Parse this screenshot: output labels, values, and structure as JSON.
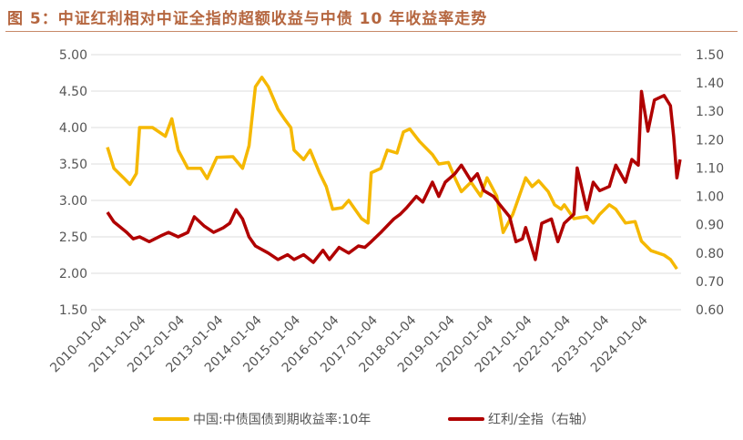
{
  "title": "图 5：中证红利相对中证全指的超额收益与中债 10 年收益率走势",
  "chart_data": {
    "type": "line",
    "title": "图 5：中证红利相对中证全指的超额收益与中债 10 年收益率走势",
    "xlabel": "",
    "ylabel": "",
    "x_ticks": [
      "2010-01-04",
      "2011-01-04",
      "2012-01-04",
      "2013-01-04",
      "2014-01-04",
      "2015-01-04",
      "2016-01-04",
      "2017-01-04",
      "2018-01-04",
      "2019-01-04",
      "2020-01-04",
      "2021-01-04",
      "2022-01-04",
      "2023-01-04",
      "2024-01-04"
    ],
    "y_left": {
      "ylim": [
        1.5,
        5.0
      ],
      "ticks": [
        "1.50",
        "2.00",
        "2.50",
        "3.00",
        "3.50",
        "4.00",
        "4.50",
        "5.00"
      ]
    },
    "y_right": {
      "ylim": [
        0.6,
        1.5
      ],
      "ticks": [
        "0.60",
        "0.70",
        "0.80",
        "0.90",
        "1.00",
        "1.10",
        "1.20",
        "1.30",
        "1.40",
        "1.50"
      ]
    },
    "grid": true,
    "legend_position": "bottom",
    "series": [
      {
        "name": "中国:中债国债到期收益率:10年",
        "axis": "left",
        "color": "#f5b800",
        "points": [
          [
            "2010-01",
            3.73
          ],
          [
            "2010-03",
            3.44
          ],
          [
            "2010-06",
            3.31
          ],
          [
            "2010-08",
            3.22
          ],
          [
            "2010-10",
            3.37
          ],
          [
            "2010-11",
            4.0
          ],
          [
            "2011-03",
            4.0
          ],
          [
            "2011-07",
            3.88
          ],
          [
            "2011-09",
            4.12
          ],
          [
            "2011-11",
            3.69
          ],
          [
            "2012-02",
            3.44
          ],
          [
            "2012-06",
            3.44
          ],
          [
            "2012-08",
            3.3
          ],
          [
            "2012-11",
            3.59
          ],
          [
            "2013-04",
            3.6
          ],
          [
            "2013-07",
            3.44
          ],
          [
            "2013-09",
            3.75
          ],
          [
            "2013-11",
            4.56
          ],
          [
            "2014-01",
            4.69
          ],
          [
            "2014-03",
            4.56
          ],
          [
            "2014-06",
            4.25
          ],
          [
            "2014-08",
            4.12
          ],
          [
            "2014-10",
            4.0
          ],
          [
            "2014-11",
            3.69
          ],
          [
            "2015-02",
            3.56
          ],
          [
            "2015-04",
            3.69
          ],
          [
            "2015-07",
            3.37
          ],
          [
            "2015-09",
            3.19
          ],
          [
            "2015-11",
            2.88
          ],
          [
            "2016-02",
            2.9
          ],
          [
            "2016-04",
            3.0
          ],
          [
            "2016-08",
            2.75
          ],
          [
            "2016-10",
            2.69
          ],
          [
            "2016-11",
            3.38
          ],
          [
            "2017-02",
            3.44
          ],
          [
            "2017-04",
            3.69
          ],
          [
            "2017-07",
            3.65
          ],
          [
            "2017-09",
            3.94
          ],
          [
            "2017-11",
            3.98
          ],
          [
            "2018-02",
            3.81
          ],
          [
            "2018-06",
            3.63
          ],
          [
            "2018-08",
            3.5
          ],
          [
            "2018-11",
            3.52
          ],
          [
            "2019-01",
            3.31
          ],
          [
            "2019-03",
            3.12
          ],
          [
            "2019-06",
            3.25
          ],
          [
            "2019-09",
            3.06
          ],
          [
            "2019-11",
            3.31
          ],
          [
            "2020-02",
            3.06
          ],
          [
            "2020-04",
            2.56
          ],
          [
            "2020-07",
            2.81
          ],
          [
            "2020-09",
            3.06
          ],
          [
            "2020-11",
            3.31
          ],
          [
            "2021-01",
            3.19
          ],
          [
            "2021-03",
            3.27
          ],
          [
            "2021-06",
            3.12
          ],
          [
            "2021-08",
            2.94
          ],
          [
            "2021-10",
            2.88
          ],
          [
            "2021-11",
            2.94
          ],
          [
            "2022-02",
            2.75
          ],
          [
            "2022-06",
            2.78
          ],
          [
            "2022-08",
            2.69
          ],
          [
            "2022-10",
            2.81
          ],
          [
            "2023-01",
            2.94
          ],
          [
            "2023-03",
            2.88
          ],
          [
            "2023-06",
            2.69
          ],
          [
            "2023-09",
            2.71
          ],
          [
            "2023-11",
            2.44
          ],
          [
            "2024-02",
            2.31
          ],
          [
            "2024-06",
            2.25
          ],
          [
            "2024-08",
            2.19
          ],
          [
            "2024-10",
            2.06
          ]
        ]
      },
      {
        "name": "红利/全指（右轴）",
        "axis": "right",
        "color": "#b00000",
        "points": [
          [
            "2010-01",
            0.944
          ],
          [
            "2010-03",
            0.91
          ],
          [
            "2010-07",
            0.873
          ],
          [
            "2010-09",
            0.85
          ],
          [
            "2010-11",
            0.857
          ],
          [
            "2011-02",
            0.84
          ],
          [
            "2011-06",
            0.863
          ],
          [
            "2011-08",
            0.873
          ],
          [
            "2011-11",
            0.857
          ],
          [
            "2012-02",
            0.873
          ],
          [
            "2012-04",
            0.928
          ],
          [
            "2012-07",
            0.896
          ],
          [
            "2012-10",
            0.873
          ],
          [
            "2013-01",
            0.889
          ],
          [
            "2013-03",
            0.905
          ],
          [
            "2013-05",
            0.953
          ],
          [
            "2013-07",
            0.92
          ],
          [
            "2013-09",
            0.857
          ],
          [
            "2013-11",
            0.825
          ],
          [
            "2014-03",
            0.8
          ],
          [
            "2014-06",
            0.777
          ],
          [
            "2014-09",
            0.794
          ],
          [
            "2014-11",
            0.777
          ],
          [
            "2015-02",
            0.794
          ],
          [
            "2015-05",
            0.767
          ],
          [
            "2015-08",
            0.81
          ],
          [
            "2015-10",
            0.777
          ],
          [
            "2016-01",
            0.82
          ],
          [
            "2016-04",
            0.8
          ],
          [
            "2016-07",
            0.825
          ],
          [
            "2016-09",
            0.82
          ],
          [
            "2016-11",
            0.84
          ],
          [
            "2017-02",
            0.873
          ],
          [
            "2017-06",
            0.92
          ],
          [
            "2017-08",
            0.937
          ],
          [
            "2017-10",
            0.96
          ],
          [
            "2018-01",
            1.0
          ],
          [
            "2018-03",
            0.98
          ],
          [
            "2018-06",
            1.05
          ],
          [
            "2018-08",
            1.0
          ],
          [
            "2018-10",
            1.05
          ],
          [
            "2019-01",
            1.08
          ],
          [
            "2019-03",
            1.11
          ],
          [
            "2019-06",
            1.055
          ],
          [
            "2019-08",
            1.08
          ],
          [
            "2019-10",
            1.02
          ],
          [
            "2020-01",
            1.0
          ],
          [
            "2020-03",
            0.97
          ],
          [
            "2020-06",
            0.928
          ],
          [
            "2020-08",
            0.84
          ],
          [
            "2020-10",
            0.85
          ],
          [
            "2020-11",
            0.89
          ],
          [
            "2021-02",
            0.777
          ],
          [
            "2021-04",
            0.905
          ],
          [
            "2021-07",
            0.92
          ],
          [
            "2021-09",
            0.84
          ],
          [
            "2021-11",
            0.905
          ],
          [
            "2022-02",
            0.937
          ],
          [
            "2022-03",
            1.1
          ],
          [
            "2022-06",
            0.953
          ],
          [
            "2022-08",
            1.05
          ],
          [
            "2022-10",
            1.02
          ],
          [
            "2023-01",
            1.035
          ],
          [
            "2023-03",
            1.11
          ],
          [
            "2023-06",
            1.05
          ],
          [
            "2023-08",
            1.13
          ],
          [
            "2023-10",
            1.11
          ],
          [
            "2023-11",
            1.37
          ],
          [
            "2024-01",
            1.23
          ],
          [
            "2024-03",
            1.34
          ],
          [
            "2024-06",
            1.356
          ],
          [
            "2024-08",
            1.32
          ],
          [
            "2024-09",
            1.21
          ],
          [
            "2024-10",
            1.065
          ],
          [
            "2024-11",
            1.13
          ]
        ]
      }
    ]
  }
}
